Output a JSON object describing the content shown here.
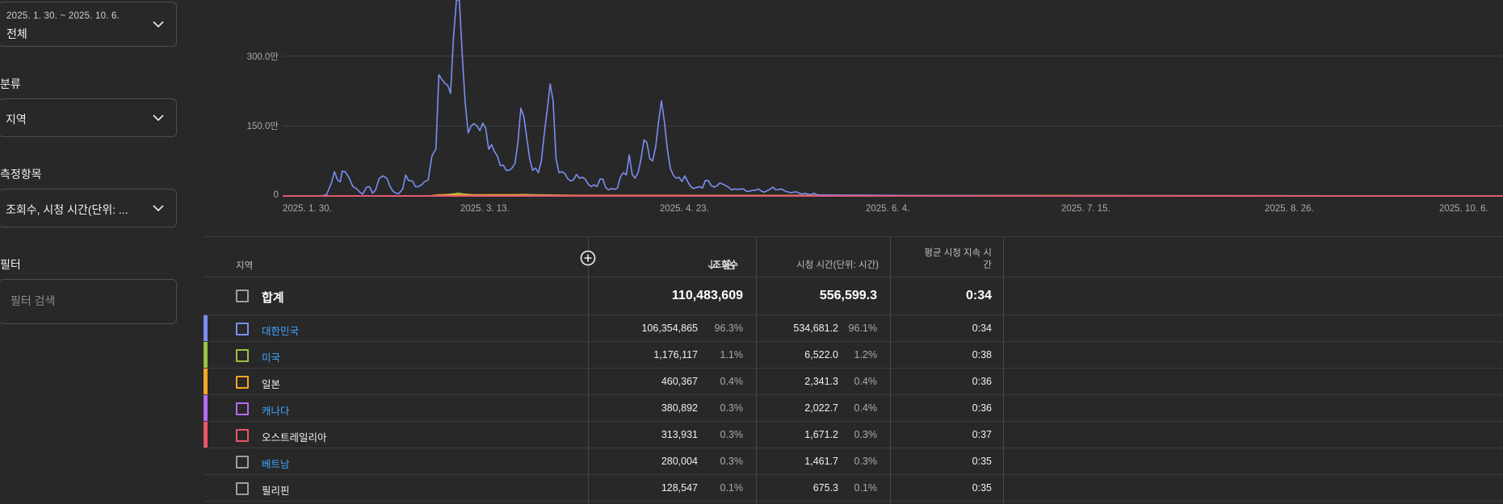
{
  "sidebar": {
    "date_range": {
      "range": "2025. 1. 30. ~ 2025. 10. 6.",
      "value": "전체"
    },
    "breakdown": {
      "label": "분류",
      "value": "지역"
    },
    "metrics": {
      "label": "측정항목",
      "value": "조회수, 시청 시간(단위: ..."
    },
    "filter": {
      "label": "필터",
      "placeholder": "필터 검색"
    }
  },
  "chart_data": {
    "type": "line",
    "title": "",
    "x_tick_labels": [
      "2025. 1. 30.",
      "2025. 3. 13.",
      "2025. 4. 23.",
      "2025. 6. 4.",
      "2025. 7. 15.",
      "2025. 8. 26.",
      "2025. 10. 6."
    ],
    "y_tick_labels": [
      "0",
      "150.0만",
      "300.0만"
    ],
    "ylim": [
      0,
      4200000
    ],
    "days": 250,
    "series": [
      {
        "name": "대한민국",
        "color": "#7b8ef0",
        "points": [
          [
            0,
            0
          ],
          [
            40,
            0
          ],
          [
            45,
            30000
          ],
          [
            50,
            280000
          ],
          [
            53,
            520000
          ],
          [
            56,
            350000
          ],
          [
            59,
            300000
          ],
          [
            61,
            530000
          ],
          [
            64,
            520000
          ],
          [
            68,
            390000
          ],
          [
            72,
            200000
          ],
          [
            76,
            150000
          ],
          [
            79,
            80000
          ],
          [
            82,
            40000
          ],
          [
            86,
            190000
          ],
          [
            89,
            200000
          ],
          [
            92,
            60000
          ],
          [
            95,
            120000
          ],
          [
            99,
            380000
          ],
          [
            103,
            430000
          ],
          [
            107,
            370000
          ],
          [
            110,
            200000
          ],
          [
            113,
            100000
          ],
          [
            116,
            60000
          ],
          [
            119,
            50000
          ],
          [
            123,
            150000
          ],
          [
            126,
            450000
          ],
          [
            129,
            330000
          ],
          [
            133,
            320000
          ],
          [
            136,
            200000
          ],
          [
            139,
            200000
          ],
          [
            143,
            250000
          ],
          [
            145,
            300000
          ],
          [
            149,
            340000
          ],
          [
            153,
            860000
          ],
          [
            157,
            1010000
          ],
          [
            160,
            2600000
          ],
          [
            163,
            2500000
          ],
          [
            166,
            2420000
          ],
          [
            169,
            2370000
          ],
          [
            172,
            2200000
          ],
          [
            175,
            3400000
          ],
          [
            178,
            4200000
          ],
          [
            181,
            4200000
          ],
          [
            184,
            3000000
          ],
          [
            187,
            2000000
          ],
          [
            190,
            1350000
          ],
          [
            193,
            1500000
          ],
          [
            196,
            1550000
          ],
          [
            199,
            1500000
          ],
          [
            202,
            1400000
          ],
          [
            205,
            1560000
          ],
          [
            208,
            1450000
          ],
          [
            211,
            1000000
          ],
          [
            214,
            1100000
          ],
          [
            217,
            950000
          ],
          [
            220,
            850000
          ],
          [
            223,
            650000
          ],
          [
            226,
            660000
          ],
          [
            229,
            550000
          ],
          [
            232,
            550000
          ],
          [
            235,
            600000
          ],
          [
            238,
            700000
          ],
          [
            241,
            1150000
          ],
          [
            244,
            1880000
          ],
          [
            247,
            1700000
          ],
          [
            250,
            1250000
          ],
          [
            253,
            800000
          ],
          [
            256,
            550000
          ],
          [
            259,
            600000
          ],
          [
            262,
            500000
          ],
          [
            265,
            750000
          ],
          [
            268,
            1350000
          ],
          [
            271,
            1850000
          ],
          [
            274,
            2400000
          ],
          [
            277,
            2050000
          ],
          [
            280,
            800000
          ],
          [
            283,
            500000
          ],
          [
            286,
            520000
          ],
          [
            289,
            480000
          ],
          [
            292,
            370000
          ],
          [
            295,
            320000
          ],
          [
            298,
            350000
          ],
          [
            301,
            460000
          ],
          [
            304,
            380000
          ],
          [
            307,
            400000
          ],
          [
            310,
            360000
          ],
          [
            313,
            250000
          ],
          [
            316,
            200000
          ],
          [
            319,
            240000
          ],
          [
            322,
            200000
          ],
          [
            325,
            360000
          ],
          [
            328,
            360000
          ],
          [
            331,
            180000
          ],
          [
            334,
            130000
          ],
          [
            337,
            160000
          ],
          [
            340,
            140000
          ],
          [
            343,
            170000
          ],
          [
            346,
            410000
          ],
          [
            349,
            500000
          ],
          [
            352,
            450000
          ],
          [
            355,
            880000
          ],
          [
            358,
            460000
          ],
          [
            361,
            380000
          ],
          [
            364,
            500000
          ],
          [
            367,
            780000
          ],
          [
            370,
            1200000
          ],
          [
            373,
            1150000
          ],
          [
            376,
            800000
          ],
          [
            379,
            750000
          ],
          [
            382,
            1050000
          ],
          [
            385,
            1580000
          ],
          [
            388,
            2040000
          ],
          [
            391,
            1600000
          ],
          [
            394,
            1000000
          ],
          [
            397,
            600000
          ],
          [
            400,
            450000
          ],
          [
            403,
            380000
          ],
          [
            406,
            400000
          ],
          [
            409,
            310000
          ],
          [
            412,
            430000
          ],
          [
            415,
            300000
          ],
          [
            418,
            200000
          ],
          [
            421,
            160000
          ],
          [
            424,
            180000
          ],
          [
            427,
            200000
          ],
          [
            430,
            170000
          ],
          [
            433,
            330000
          ],
          [
            436,
            330000
          ],
          [
            439,
            220000
          ],
          [
            442,
            190000
          ],
          [
            445,
            220000
          ],
          [
            448,
            280000
          ],
          [
            451,
            250000
          ],
          [
            454,
            220000
          ],
          [
            457,
            180000
          ],
          [
            460,
            130000
          ],
          [
            463,
            150000
          ],
          [
            466,
            140000
          ],
          [
            469,
            150000
          ],
          [
            472,
            150000
          ],
          [
            475,
            100000
          ],
          [
            478,
            100000
          ],
          [
            481,
            120000
          ],
          [
            484,
            120000
          ],
          [
            487,
            150000
          ],
          [
            490,
            110000
          ],
          [
            493,
            80000
          ],
          [
            496,
            110000
          ],
          [
            499,
            140000
          ],
          [
            502,
            190000
          ],
          [
            505,
            130000
          ],
          [
            508,
            140000
          ],
          [
            511,
            150000
          ],
          [
            514,
            110000
          ],
          [
            517,
            90000
          ],
          [
            520,
            70000
          ],
          [
            523,
            80000
          ],
          [
            526,
            90000
          ],
          [
            529,
            60000
          ],
          [
            532,
            40000
          ],
          [
            535,
            60000
          ],
          [
            538,
            40000
          ],
          [
            541,
            30000
          ],
          [
            544,
            60000
          ],
          [
            547,
            30000
          ],
          [
            550,
            20000
          ],
          [
            600,
            15000
          ],
          [
            650,
            10000
          ],
          [
            700,
            10000
          ],
          [
            720,
            8000
          ],
          [
            740,
            6000
          ],
          [
            760,
            5000
          ],
          [
            780,
            4000
          ],
          [
            800,
            3000
          ],
          [
            820,
            2000
          ],
          [
            1000,
            2000
          ],
          [
            1250,
            0
          ]
        ]
      },
      {
        "name": "미국",
        "color": "#9ac341",
        "points": [
          [
            0,
            0
          ],
          [
            150,
            0
          ],
          [
            165,
            20000
          ],
          [
            175,
            40000
          ],
          [
            180,
            60000
          ],
          [
            185,
            40000
          ],
          [
            195,
            20000
          ],
          [
            240,
            20000
          ],
          [
            245,
            30000
          ],
          [
            255,
            25000
          ],
          [
            300,
            10000
          ],
          [
            1250,
            0
          ]
        ]
      },
      {
        "name": "일본",
        "color": "#f5a623",
        "points": [
          [
            0,
            0
          ],
          [
            150,
            0
          ],
          [
            160,
            20000
          ],
          [
            175,
            30000
          ],
          [
            185,
            20000
          ],
          [
            205,
            20000
          ],
          [
            240,
            25000
          ],
          [
            260,
            10000
          ],
          [
            1250,
            0
          ]
        ]
      },
      {
        "name": "캐나다",
        "color": "#b36bf0",
        "points": [
          [
            0,
            0
          ],
          [
            1250,
            0
          ]
        ]
      },
      {
        "name": "오스트레일리아",
        "color": "#e8556a",
        "points": [
          [
            0,
            0
          ],
          [
            1250,
            0
          ]
        ]
      }
    ]
  },
  "table": {
    "headers": {
      "dimension": "지역",
      "views": "조회수",
      "watch_time": "시청 시간(단위: 시간)",
      "avg_duration_line1": "평균 시청 지속 시",
      "avg_duration_line2": "간"
    },
    "total": {
      "name": "합계",
      "views": "110,483,609",
      "watch_time": "556,599.3",
      "avg_duration": "0:34"
    },
    "rows": [
      {
        "name": "대한민국",
        "link": true,
        "color": "#7b8ef0",
        "views": "106,354,865",
        "views_pct": "96.3%",
        "watch_time": "534,681.2",
        "watch_pct": "96.1%",
        "avg_duration": "0:34"
      },
      {
        "name": "미국",
        "link": true,
        "color": "#9ac341",
        "views": "1,176,117",
        "views_pct": "1.1%",
        "watch_time": "6,522.0",
        "watch_pct": "1.2%",
        "avg_duration": "0:38"
      },
      {
        "name": "일본",
        "link": false,
        "color": "#f5a623",
        "views": "460,367",
        "views_pct": "0.4%",
        "watch_time": "2,341.3",
        "watch_pct": "0.4%",
        "avg_duration": "0:36"
      },
      {
        "name": "캐나다",
        "link": true,
        "color": "#b36bf0",
        "views": "380,892",
        "views_pct": "0.3%",
        "watch_time": "2,022.7",
        "watch_pct": "0.4%",
        "avg_duration": "0:36"
      },
      {
        "name": "오스트레일리아",
        "link": false,
        "color": "#e8556a",
        "views": "313,931",
        "views_pct": "0.3%",
        "watch_time": "1,671.2",
        "watch_pct": "0.3%",
        "avg_duration": "0:37"
      },
      {
        "name": "베트남",
        "link": true,
        "color": "",
        "views": "280,004",
        "views_pct": "0.3%",
        "watch_time": "1,461.7",
        "watch_pct": "0.3%",
        "avg_duration": "0:35"
      },
      {
        "name": "필리핀",
        "link": false,
        "color": "",
        "views": "128,547",
        "views_pct": "0.1%",
        "watch_time": "675.3",
        "watch_pct": "0.1%",
        "avg_duration": "0:35"
      }
    ]
  }
}
